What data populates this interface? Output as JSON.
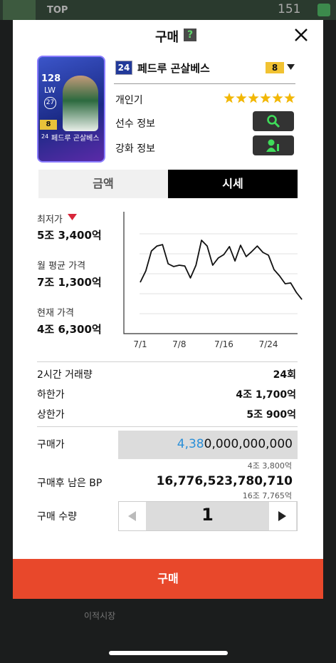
{
  "top_bar": {
    "rank": "TOP",
    "coins": "151"
  },
  "bottom_nav": {
    "market": "이적시장"
  },
  "modal": {
    "title": "구매",
    "help": "?"
  },
  "card": {
    "ovr": "128",
    "position": "LW",
    "team_number": "27",
    "season": "24",
    "grade": "8",
    "name": "페드루 곤살베스"
  },
  "player": {
    "season": "24",
    "name": "페드루 곤살베스",
    "level": "8",
    "skill_label": "개인기",
    "skill_stars": 6,
    "info_label": "선수 정보",
    "upgrade_label": "강화 정보"
  },
  "tabs": [
    "금액",
    "시세"
  ],
  "prices": {
    "min_label": "최저가",
    "min_value": "5조 3,400억",
    "avg_label": "월 평균 가격",
    "avg_value": "7조 1,300억",
    "current_label": "현재 가격",
    "current_value": "4조 6,300억"
  },
  "chart_data": {
    "type": "line",
    "categories": [
      "7/1",
      null,
      null,
      null,
      null,
      null,
      null,
      "7/8",
      null,
      null,
      null,
      null,
      null,
      null,
      null,
      "7/16",
      null,
      null,
      null,
      null,
      null,
      null,
      null,
      "7/24",
      null,
      null,
      null,
      null,
      null,
      null
    ],
    "values": [
      2.57,
      3.14,
      4.14,
      4.39,
      4.46,
      3.5,
      3.36,
      3.43,
      3.39,
      2.79,
      3.43,
      4.68,
      4.39,
      3.43,
      3.79,
      3.96,
      4.36,
      3.64,
      4.43,
      3.86,
      4.11,
      4.39,
      4.07,
      3.93,
      3.21,
      2.89,
      2.5,
      2.54,
      2.07,
      1.71
    ],
    "color": "#111111",
    "ylim": [
      0,
      6
    ],
    "yticks": [
      1,
      2,
      3,
      4,
      5
    ],
    "grid": true
  },
  "trade": {
    "volume_label": "2시간 거래량",
    "volume_value": "24회",
    "low_label": "하한가",
    "low_value": "4조 1,700억",
    "high_label": "상한가",
    "high_value": "5조 900억"
  },
  "purchase": {
    "price_label": "구매가",
    "price_highlight": "4,38",
    "price_rest": "0,000,000,000",
    "price_sub": "4조 3,800억",
    "remain_label": "구매후 남은 BP",
    "remain_value": "16,776,523,780,710",
    "remain_sub": "16조 7,765억",
    "qty_label": "구매 수량",
    "qty_value": "1",
    "buy_button": "구매"
  }
}
